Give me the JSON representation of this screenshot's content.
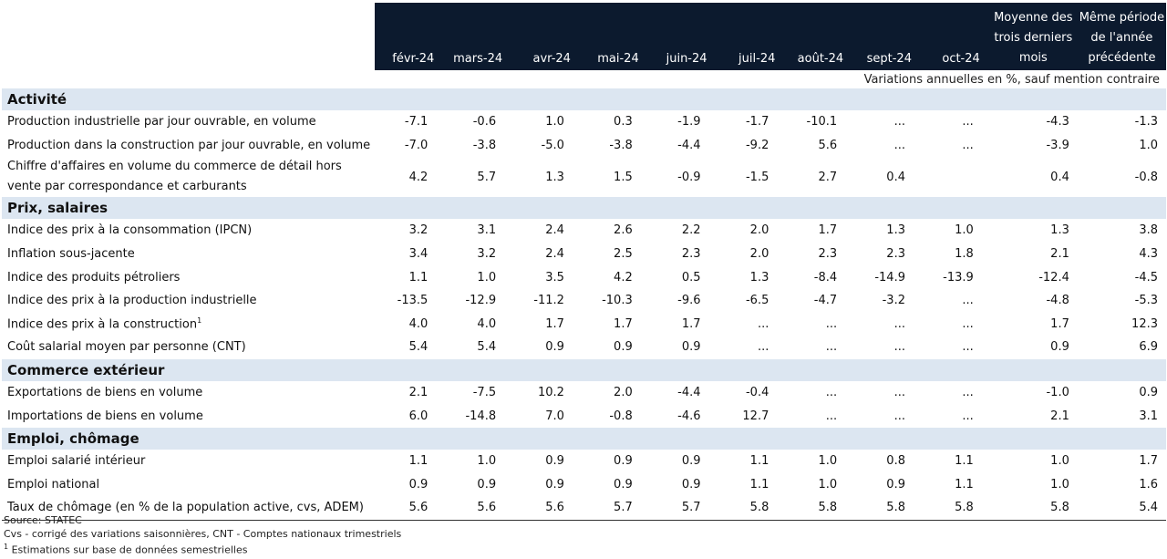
{
  "table": {
    "columns": [
      "févr-24",
      "mars-24",
      "avr-24",
      "mai-24",
      "juin-24",
      "juil-24",
      "août-24",
      "sept-24",
      "oct-24",
      "Moyenne des trois derniers mois",
      "Même période de l'année précédente"
    ],
    "units_note": "Variations annuelles en %, sauf mention contraire",
    "sections": [
      {
        "title": "Activité",
        "rows": [
          {
            "label": "Production industrielle par jour ouvrable, en volume",
            "values": [
              "-7.1",
              "-0.6",
              "1.0",
              "0.3",
              "-1.9",
              "-1.7",
              "-10.1",
              "...",
              "...",
              "-4.3",
              "-1.3"
            ]
          },
          {
            "label": "Production dans la construction par jour ouvrable, en volume",
            "values": [
              "-7.0",
              "-3.8",
              "-5.0",
              "-3.8",
              "-4.4",
              "-9.2",
              "5.6",
              "...",
              "...",
              "-3.9",
              "1.0"
            ]
          },
          {
            "label": "Chiffre d'affaires en volume du commerce de détail hors vente par correspondance et carburants",
            "values": [
              "4.2",
              "5.7",
              "1.3",
              "1.5",
              "-0.9",
              "-1.5",
              "2.7",
              "0.4",
              "",
              "0.4",
              "-0.8"
            ],
            "tall": true
          }
        ]
      },
      {
        "title": "Prix, salaires",
        "rows": [
          {
            "label": "Indice des prix à la consommation (IPCN)",
            "values": [
              "3.2",
              "3.1",
              "2.4",
              "2.6",
              "2.2",
              "2.0",
              "1.7",
              "1.3",
              "1.0",
              "1.3",
              "3.8"
            ]
          },
          {
            "label": "Inflation sous-jacente",
            "values": [
              "3.4",
              "3.2",
              "2.4",
              "2.5",
              "2.3",
              "2.0",
              "2.3",
              "2.3",
              "1.8",
              "2.1",
              "4.3"
            ]
          },
          {
            "label": "Indice des produits pétroliers",
            "values": [
              "1.1",
              "1.0",
              "3.5",
              "4.2",
              "0.5",
              "1.3",
              "-8.4",
              "-14.9",
              "-13.9",
              "-12.4",
              "-4.5"
            ]
          },
          {
            "label": "Indice des prix à la production industrielle",
            "values": [
              "-13.5",
              "-12.9",
              "-11.2",
              "-10.3",
              "-9.6",
              "-6.5",
              "-4.7",
              "-3.2",
              "...",
              "-4.8",
              "-5.3"
            ]
          },
          {
            "label": "Indice des prix à la construction",
            "sup": "1",
            "values": [
              "4.0",
              "4.0",
              "1.7",
              "1.7",
              "1.7",
              "...",
              "...",
              "...",
              "...",
              "1.7",
              "12.3"
            ]
          },
          {
            "label": "Coût salarial moyen par personne (CNT)",
            "values": [
              "5.4",
              "5.4",
              "0.9",
              "0.9",
              "0.9",
              "...",
              "...",
              "...",
              "...",
              "0.9",
              "6.9"
            ]
          }
        ]
      },
      {
        "title": "Commerce extérieur",
        "rows": [
          {
            "label": "Exportations de biens en volume",
            "values": [
              "2.1",
              "-7.5",
              "10.2",
              "2.0",
              "-4.4",
              "-0.4",
              "...",
              "...",
              "...",
              "-1.0",
              "0.9"
            ]
          },
          {
            "label": "Importations de biens en volume",
            "values": [
              "6.0",
              "-14.8",
              "7.0",
              "-0.8",
              "-4.6",
              "12.7",
              "...",
              "...",
              "...",
              "2.1",
              "3.1"
            ]
          }
        ]
      },
      {
        "title": "Emploi, chômage",
        "rows": [
          {
            "label": "Emploi salarié intérieur",
            "values": [
              "1.1",
              "1.0",
              "0.9",
              "0.9",
              "0.9",
              "1.1",
              "1.0",
              "0.8",
              "1.1",
              "1.0",
              "1.7"
            ]
          },
          {
            "label": "Emploi national",
            "values": [
              "0.9",
              "0.9",
              "0.9",
              "0.9",
              "0.9",
              "1.1",
              "1.0",
              "0.9",
              "1.1",
              "1.0",
              "1.6"
            ]
          },
          {
            "label": "Taux de chômage (en % de la population active, cvs, ADEM)",
            "values": [
              "5.6",
              "5.6",
              "5.6",
              "5.7",
              "5.7",
              "5.8",
              "5.8",
              "5.8",
              "5.8",
              "5.8",
              "5.4"
            ]
          }
        ]
      }
    ]
  },
  "notes": {
    "source": "Source: STATEC",
    "cvs": "Cvs - corrigé des variations saisonnières, CNT - Comptes nationaux trimestriels",
    "footnote_mark": "1",
    "footnote_text": " Estimations sur base de données semestrielles"
  }
}
